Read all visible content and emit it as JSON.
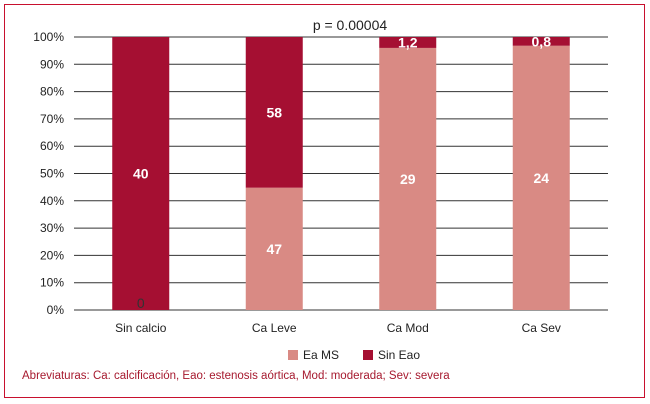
{
  "chart_data": {
    "type": "bar",
    "stacked": true,
    "normalized_percent": true,
    "categories": [
      "Sin calcio",
      "Ca Leve",
      "Ca Mod",
      "Ca Sev"
    ],
    "series": [
      {
        "name": "Ea MS",
        "labels": [
          "0",
          "47",
          "29",
          "24"
        ],
        "share_percent": [
          0,
          44.8,
          96.0,
          96.8
        ],
        "color": "#d98a84"
      },
      {
        "name": "Sin Eao",
        "labels": [
          "40",
          "58",
          "1,2",
          "0,8"
        ],
        "share_percent": [
          100,
          55.2,
          4.0,
          3.2
        ],
        "color": "#a50f32"
      }
    ],
    "yaxis": {
      "ticks": [
        "0%",
        "10%",
        "20%",
        "30%",
        "40%",
        "50%",
        "60%",
        "70%",
        "80%",
        "90%",
        "100%"
      ],
      "ylim": [
        0,
        100
      ]
    },
    "grid": true,
    "legend_position": "bottom-center",
    "annotation": "p = 0.00004"
  },
  "footnote": "Abreviaturas: Ca: calcificación, Eao: estenosis aórtica, Mod: moderada; Sev: severa"
}
